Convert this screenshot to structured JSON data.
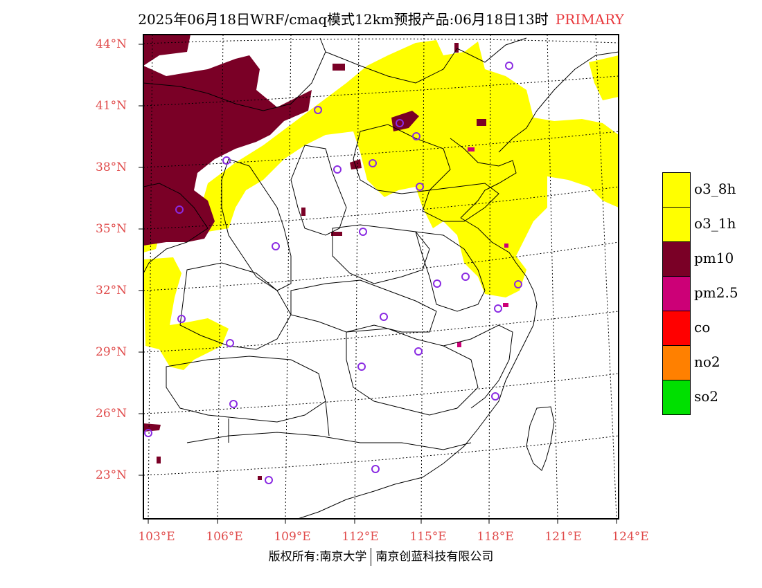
{
  "title": {
    "main": "2025年06月18日WRF/cmaq模式12km预报产品:06月18日13时",
    "tag": "PRIMARY"
  },
  "colors": {
    "o3_8h": "#ffff00",
    "o3_1h": "#ffff00",
    "pm10": "#7a0026",
    "pm25": "#cc0077",
    "co": "#ff0000",
    "no2": "#ff8000",
    "so2": "#00e000",
    "station": "#8a2be2",
    "label": "#e04a4a"
  },
  "axes": {
    "lat_labels": [
      "44°N",
      "41°N",
      "38°N",
      "35°N",
      "32°N",
      "29°N",
      "26°N",
      "23°N"
    ],
    "lon_labels": [
      "103°E",
      "106°E",
      "109°E",
      "112°E",
      "115°E",
      "118°E",
      "121°E",
      "124°E"
    ]
  },
  "legend": [
    {
      "label": "o3_8h",
      "color": "#ffff00"
    },
    {
      "label": "o3_1h",
      "color": "#ffff00"
    },
    {
      "label": "pm10",
      "color": "#7a0026"
    },
    {
      "label": "pm2.5",
      "color": "#cc0077"
    },
    {
      "label": "co",
      "color": "#ff0000"
    },
    {
      "label": "no2",
      "color": "#ff8000"
    },
    {
      "label": "so2",
      "color": "#00e000"
    }
  ],
  "footer": {
    "left": "版权所有:南京大学",
    "right": "南京创蓝科技有限公司"
  }
}
